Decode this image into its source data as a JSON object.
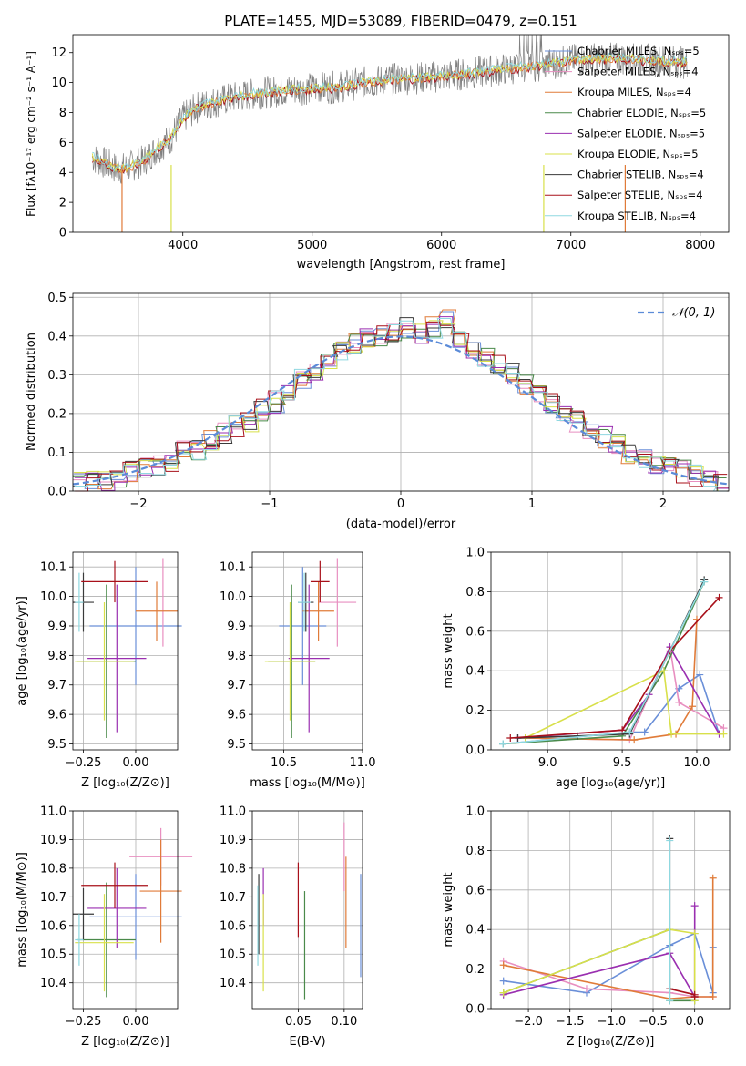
{
  "colors": {
    "chabrier_miles": "#6a8fd8",
    "salpeter_miles": "#e88fc0",
    "kroupa_miles": "#e07b39",
    "chabrier_elodie": "#4a8a4a",
    "salpeter_elodie": "#9a2fb0",
    "kroupa_elodie": "#d8e04a",
    "chabrier_stelib": "#3a3a3a",
    "salpeter_stelib": "#a8101a",
    "kroupa_stelib": "#8fd8e0",
    "fit_grey": "#808080",
    "normal_curve": "#5b8bd8"
  },
  "chart_data": [
    {
      "id": "spectrum",
      "type": "line",
      "title": "PLATE=1455, MJD=53089, FIBERID=0479, z=0.151",
      "xlabel": "wavelength [Angstrom, rest frame]",
      "ylabel": "Flux [fλ10⁻¹⁷ erg cm⁻² s⁻¹ A⁻¹]",
      "xlim": [
        3150,
        8220
      ],
      "ylim": [
        0,
        13.2
      ],
      "xticks": [
        "4000",
        "5000",
        "6000",
        "7000",
        "8000"
      ],
      "yticks": [
        "0",
        "2",
        "4",
        "6",
        "8",
        "10",
        "12"
      ],
      "grid": false,
      "legend_position": "top-right",
      "legend": [
        "Chabrier MILES, Nₛₚₛ=5",
        "Salpeter MILES, Nₛₚₛ=4",
        "Kroupa MILES, Nₛₚₛ=4",
        "Chabrier ELODIE, Nₛₚₛ=5",
        "Salpeter ELODIE, Nₛₚₛ=5",
        "Kroupa ELODIE, Nₛₚₛ=5",
        "Chabrier STELIB, Nₛₚₛ=4",
        "Salpeter STELIB, Nₛₚₛ=4",
        "Kroupa STELIB, Nₛₚₛ=4"
      ],
      "continuum": {
        "x": [
          3300,
          3400,
          3500,
          3600,
          3700,
          3800,
          3900,
          4000,
          4100,
          4200,
          4400,
          4600,
          4800,
          5000,
          5200,
          5400,
          5600,
          5800,
          6000,
          6200,
          6400,
          6600,
          6800,
          7000,
          7200,
          7400,
          7600,
          7800,
          7900
        ],
        "y": [
          5.0,
          4.6,
          4.2,
          4.4,
          4.8,
          5.6,
          6.2,
          7.6,
          8.3,
          8.6,
          9.0,
          9.3,
          9.5,
          9.6,
          9.7,
          10.0,
          10.2,
          10.3,
          10.4,
          10.6,
          10.8,
          11.0,
          11.2,
          11.5,
          11.6,
          11.6,
          11.5,
          11.4,
          11.3
        ]
      }
    },
    {
      "id": "residuals",
      "type": "bar",
      "xlabel": "(data-model)/error",
      "ylabel": "Normed distribution",
      "xlim": [
        -2.5,
        2.5
      ],
      "ylim": [
        0,
        0.51
      ],
      "xticks": [
        "−2",
        "−1",
        "0",
        "1",
        "2"
      ],
      "yticks": [
        "0.0",
        "0.1",
        "0.2",
        "0.3",
        "0.4",
        "0.5"
      ],
      "grid": true,
      "legend_position": "top-right",
      "legend": [
        "𝒩(0, 1)"
      ],
      "bin_width": 0.1,
      "bin_start": -2.5,
      "reference_values": [
        0.02,
        0.03,
        0.03,
        0.04,
        0.05,
        0.06,
        0.07,
        0.08,
        0.1,
        0.11,
        0.13,
        0.15,
        0.17,
        0.18,
        0.21,
        0.23,
        0.26,
        0.29,
        0.31,
        0.33,
        0.36,
        0.38,
        0.39,
        0.4,
        0.41,
        0.42,
        0.41,
        0.42,
        0.44,
        0.39,
        0.37,
        0.35,
        0.33,
        0.3,
        0.28,
        0.25,
        0.23,
        0.2,
        0.18,
        0.16,
        0.14,
        0.12,
        0.1,
        0.09,
        0.07,
        0.06,
        0.05,
        0.04,
        0.03,
        0.02
      ]
    },
    {
      "id": "age_vs_Z",
      "type": "scatter",
      "xlabel": "Z [log₁₀(Z/Z⊙)]",
      "ylabel": "age  [log₁₀(age/yr)]",
      "xlim": [
        -0.3,
        0.2
      ],
      "ylim": [
        9.48,
        10.15
      ],
      "xticks": [
        "−0.25",
        "0.00"
      ],
      "yticks": [
        "9.5",
        "9.6",
        "9.7",
        "9.8",
        "9.9",
        "10.0",
        "10.1"
      ],
      "grid": true,
      "points": [
        {
          "series": "chabrier_miles",
          "x": 0.0,
          "y": 9.9,
          "xerr": 0.22,
          "yerr": 0.2
        },
        {
          "series": "salpeter_miles",
          "x": 0.13,
          "y": 9.98,
          "xerr": 0.0,
          "yerr": 0.15
        },
        {
          "series": "kroupa_miles",
          "x": 0.1,
          "y": 9.95,
          "xerr": 0.1,
          "yerr": 0.1
        },
        {
          "series": "chabrier_elodie",
          "x": -0.14,
          "y": 9.78,
          "xerr": 0.14,
          "yerr": 0.26
        },
        {
          "series": "salpeter_elodie",
          "x": -0.09,
          "y": 9.79,
          "xerr": 0.14,
          "yerr": 0.25
        },
        {
          "series": "kroupa_elodie",
          "x": -0.15,
          "y": 9.78,
          "xerr": 0.14,
          "yerr": 0.2
        },
        {
          "series": "chabrier_stelib",
          "x": -0.25,
          "y": 9.98,
          "xerr": 0.05,
          "yerr": 0.1
        },
        {
          "series": "salpeter_stelib",
          "x": -0.1,
          "y": 10.05,
          "xerr": 0.16,
          "yerr": 0.07
        },
        {
          "series": "kroupa_stelib",
          "x": -0.27,
          "y": 9.98,
          "xerr": 0.02,
          "yerr": 0.1
        }
      ]
    },
    {
      "id": "age_vs_mass",
      "type": "scatter",
      "xlabel": "mass [log₁₀(M/M⊙)]",
      "ylabel": "",
      "xlim": [
        10.3,
        11.0
      ],
      "ylim": [
        9.48,
        10.15
      ],
      "xticks": [
        "10.5",
        "11.0"
      ],
      "yticks": [
        "9.5",
        "9.6",
        "9.7",
        "9.8",
        "9.9",
        "10.0",
        "10.1"
      ],
      "grid": true,
      "points": [
        {
          "series": "chabrier_miles",
          "x": 10.62,
          "y": 9.9,
          "xerr": 0.15,
          "yerr": 0.2
        },
        {
          "series": "salpeter_miles",
          "x": 10.84,
          "y": 9.98,
          "xerr": 0.12,
          "yerr": 0.15
        },
        {
          "series": "kroupa_miles",
          "x": 10.72,
          "y": 9.95,
          "xerr": 0.1,
          "yerr": 0.1
        },
        {
          "series": "chabrier_elodie",
          "x": 10.55,
          "y": 9.78,
          "xerr": 0.15,
          "yerr": 0.26
        },
        {
          "series": "salpeter_elodie",
          "x": 10.66,
          "y": 9.79,
          "xerr": 0.13,
          "yerr": 0.25
        },
        {
          "series": "kroupa_elodie",
          "x": 10.54,
          "y": 9.78,
          "xerr": 0.16,
          "yerr": 0.2
        },
        {
          "series": "chabrier_stelib",
          "x": 10.64,
          "y": 9.98,
          "xerr": 0.05,
          "yerr": 0.1
        },
        {
          "series": "salpeter_stelib",
          "x": 10.73,
          "y": 10.05,
          "xerr": 0.06,
          "yerr": 0.07
        },
        {
          "series": "kroupa_stelib",
          "x": 10.63,
          "y": 9.98,
          "xerr": 0.04,
          "yerr": 0.1
        }
      ]
    },
    {
      "id": "weight_vs_age",
      "type": "line",
      "xlabel": "age  [log₁₀(age/yr)]",
      "ylabel": "mass weight",
      "xlim": [
        8.62,
        10.22
      ],
      "ylim": [
        0,
        1.0
      ],
      "xticks": [
        "9.0",
        "9.5",
        "10.0"
      ],
      "yticks": [
        "0.0",
        "0.2",
        "0.4",
        "0.6",
        "0.8",
        "1.0"
      ],
      "grid": true,
      "series": [
        {
          "name": "chabrier_miles",
          "x": [
            8.7,
            9.55,
            9.65,
            9.88,
            10.02,
            10.15
          ],
          "y": [
            0.03,
            0.09,
            0.09,
            0.31,
            0.38,
            0.08
          ]
        },
        {
          "name": "salpeter_miles",
          "x": [
            8.8,
            9.55,
            9.82,
            9.88,
            10.18
          ],
          "y": [
            0.06,
            0.05,
            0.52,
            0.24,
            0.11
          ]
        },
        {
          "name": "kroupa_miles",
          "x": [
            8.85,
            9.58,
            9.86,
            9.97,
            10.0
          ],
          "y": [
            0.06,
            0.05,
            0.08,
            0.22,
            0.66
          ]
        },
        {
          "name": "chabrier_elodie",
          "x": [
            8.7,
            9.5,
            9.78,
            10.05
          ],
          "y": [
            0.03,
            0.07,
            0.4,
            0.85
          ]
        },
        {
          "name": "salpeter_elodie",
          "x": [
            8.8,
            9.5,
            9.68,
            9.82,
            10.15
          ],
          "y": [
            0.06,
            0.1,
            0.28,
            0.52,
            0.08
          ]
        },
        {
          "name": "kroupa_elodie",
          "x": [
            8.85,
            9.78,
            9.83,
            10.18
          ],
          "y": [
            0.06,
            0.4,
            0.08,
            0.08
          ]
        },
        {
          "name": "chabrier_stelib",
          "x": [
            8.8,
            9.2,
            9.55,
            10.05
          ],
          "y": [
            0.06,
            0.07,
            0.08,
            0.86
          ]
        },
        {
          "name": "salpeter_stelib",
          "x": [
            8.75,
            9.5,
            9.82,
            10.15
          ],
          "y": [
            0.06,
            0.1,
            0.5,
            0.77
          ]
        },
        {
          "name": "kroupa_stelib",
          "x": [
            8.7,
            9.55,
            10.05
          ],
          "y": [
            0.03,
            0.09,
            0.85
          ]
        }
      ]
    },
    {
      "id": "mass_vs_Z",
      "type": "scatter",
      "xlabel": "Z [log₁₀(Z/Z⊙)]",
      "ylabel": "mass [log₁₀(M/M⊙)]",
      "xlim": [
        -0.3,
        0.2
      ],
      "ylim": [
        10.31,
        11.0
      ],
      "xticks": [
        "−0.25",
        "0.00"
      ],
      "yticks": [
        "10.4",
        "10.5",
        "10.6",
        "10.7",
        "10.8",
        "10.9",
        "11.0"
      ],
      "grid": true,
      "points": [
        {
          "series": "chabrier_miles",
          "x": 0.0,
          "y": 10.63,
          "xerr": 0.22,
          "yerr": 0.15
        },
        {
          "series": "salpeter_miles",
          "x": 0.12,
          "y": 10.84,
          "xerr": 0.15,
          "yerr": 0.1
        },
        {
          "series": "kroupa_miles",
          "x": 0.12,
          "y": 10.72,
          "xerr": 0.1,
          "yerr": 0.18
        },
        {
          "series": "chabrier_elodie",
          "x": -0.14,
          "y": 10.55,
          "xerr": 0.14,
          "yerr": 0.2
        },
        {
          "series": "salpeter_elodie",
          "x": -0.09,
          "y": 10.66,
          "xerr": 0.14,
          "yerr": 0.14
        },
        {
          "series": "kroupa_elodie",
          "x": -0.15,
          "y": 10.54,
          "xerr": 0.14,
          "yerr": 0.17
        },
        {
          "series": "chabrier_stelib",
          "x": -0.25,
          "y": 10.64,
          "xerr": 0.05,
          "yerr": 0.09
        },
        {
          "series": "salpeter_stelib",
          "x": -0.1,
          "y": 10.74,
          "xerr": 0.16,
          "yerr": 0.08
        },
        {
          "series": "kroupa_stelib",
          "x": -0.27,
          "y": 10.55,
          "xerr": 0.02,
          "yerr": 0.09
        }
      ]
    },
    {
      "id": "mass_vs_ebv",
      "type": "scatter",
      "xlabel": "E(B-V)",
      "ylabel": "",
      "xlim": [
        0.0,
        0.12
      ],
      "ylim": [
        10.31,
        11.0
      ],
      "xticks": [
        "0.05",
        "0.10"
      ],
      "yticks": [
        "10.4",
        "10.5",
        "10.6",
        "10.7",
        "10.8",
        "10.9",
        "11.0"
      ],
      "grid": true,
      "points": [
        {
          "series": "chabrier_miles",
          "x": 0.118,
          "y": 10.6,
          "xerr": 0,
          "yerr": 0.18
        },
        {
          "series": "salpeter_miles",
          "x": 0.1,
          "y": 10.84,
          "xerr": 0,
          "yerr": 0.12
        },
        {
          "series": "kroupa_miles",
          "x": 0.102,
          "y": 10.68,
          "xerr": 0,
          "yerr": 0.16
        },
        {
          "series": "chabrier_elodie",
          "x": 0.057,
          "y": 10.53,
          "xerr": 0,
          "yerr": 0.19
        },
        {
          "series": "salpeter_elodie",
          "x": 0.012,
          "y": 10.7,
          "xerr": 0,
          "yerr": 0.1
        },
        {
          "series": "kroupa_elodie",
          "x": 0.012,
          "y": 10.54,
          "xerr": 0,
          "yerr": 0.17
        },
        {
          "series": "chabrier_stelib",
          "x": 0.007,
          "y": 10.64,
          "xerr": 0,
          "yerr": 0.14
        },
        {
          "series": "salpeter_stelib",
          "x": 0.05,
          "y": 10.69,
          "xerr": 0,
          "yerr": 0.13
        },
        {
          "series": "kroupa_stelib",
          "x": 0.006,
          "y": 10.6,
          "xerr": 0,
          "yerr": 0.14
        }
      ]
    },
    {
      "id": "weight_vs_Z",
      "type": "line",
      "xlabel": "Z [log₁₀(Z/Z⊙)]",
      "ylabel": "mass weight",
      "xlim": [
        -2.45,
        0.42
      ],
      "ylim": [
        0,
        1.0
      ],
      "xticks": [
        "−2.0",
        "−1.5",
        "−1.0",
        "−0.5",
        "0.0"
      ],
      "yticks": [
        "0.0",
        "0.2",
        "0.4",
        "0.6",
        "0.8",
        "1.0"
      ],
      "grid": true,
      "series": [
        {
          "name": "chabrier_miles",
          "x": [
            -2.3,
            -1.3,
            -0.3,
            0.0,
            0.22,
            0.22
          ],
          "y": [
            0.14,
            0.08,
            0.32,
            0.38,
            0.08,
            0.31
          ]
        },
        {
          "name": "salpeter_miles",
          "x": [
            -2.3,
            -1.3,
            -0.3,
            0.0,
            0.22
          ],
          "y": [
            0.24,
            0.1,
            0.08,
            0.06,
            0.06
          ]
        },
        {
          "name": "kroupa_miles",
          "x": [
            -2.3,
            -0.3,
            0.0,
            0.22,
            0.22
          ],
          "y": [
            0.22,
            0.05,
            0.06,
            0.06,
            0.66
          ]
        },
        {
          "name": "chabrier_elodie",
          "x": [
            -2.3,
            -0.3,
            -0.3,
            0.0
          ],
          "y": [
            0.08,
            0.4,
            0.04,
            0.04
          ]
        },
        {
          "name": "salpeter_elodie",
          "x": [
            -2.3,
            -0.3,
            0.0,
            0.0
          ],
          "y": [
            0.07,
            0.28,
            0.06,
            0.52
          ]
        },
        {
          "name": "kroupa_elodie",
          "x": [
            -2.3,
            -0.3,
            0.0,
            0.0
          ],
          "y": [
            0.08,
            0.4,
            0.38,
            0.04
          ]
        },
        {
          "name": "chabrier_stelib",
          "x": [
            -0.3,
            -0.3
          ],
          "y": [
            0.1,
            0.86
          ]
        },
        {
          "name": "salpeter_stelib",
          "x": [
            -0.3,
            0.0,
            0.0
          ],
          "y": [
            0.1,
            0.07,
            0.06
          ]
        },
        {
          "name": "kroupa_stelib",
          "x": [
            -0.3,
            -0.3
          ],
          "y": [
            0.04,
            0.85
          ]
        }
      ]
    }
  ]
}
